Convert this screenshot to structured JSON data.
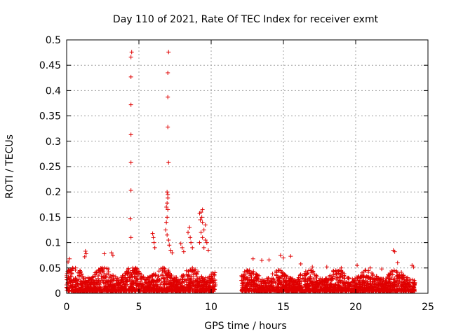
{
  "chart_data": {
    "type": "scatter",
    "title": "Day 110 of 2021, Rate Of TEC Index for receiver exmt",
    "xlabel": "GPS time / hours",
    "ylabel": "ROTI / TECUs",
    "xlim": [
      0,
      25
    ],
    "ylim": [
      0,
      0.5
    ],
    "x_ticks": [
      0,
      5,
      10,
      15,
      20,
      25
    ],
    "x_tick_labels": [
      "0",
      "5",
      "10",
      "15",
      "20",
      "25"
    ],
    "y_ticks": [
      0,
      0.05,
      0.1,
      0.15,
      0.2,
      0.25,
      0.3,
      0.35,
      0.4,
      0.45,
      0.5
    ],
    "y_tick_labels": [
      "0",
      "0.05",
      "0.1",
      "0.15",
      "0.2",
      "0.25",
      "0.3",
      "0.35",
      "0.4",
      "0.45",
      "0.5"
    ],
    "grid": true,
    "marker": "+",
    "series_color": "#e00000",
    "series": [
      {
        "name": "ROTI",
        "points": [
          [
            4.5,
            0.476
          ],
          [
            4.45,
            0.466
          ],
          [
            4.45,
            0.427
          ],
          [
            4.45,
            0.372
          ],
          [
            4.45,
            0.313
          ],
          [
            4.45,
            0.258
          ],
          [
            4.45,
            0.203
          ],
          [
            4.4,
            0.147
          ],
          [
            4.45,
            0.11
          ],
          [
            7.05,
            0.476
          ],
          [
            7.0,
            0.435
          ],
          [
            7.0,
            0.387
          ],
          [
            7.0,
            0.328
          ],
          [
            7.05,
            0.258
          ],
          [
            6.95,
            0.2
          ],
          [
            7.0,
            0.195
          ],
          [
            7.0,
            0.188
          ],
          [
            6.95,
            0.178
          ],
          [
            6.9,
            0.17
          ],
          [
            7.0,
            0.165
          ],
          [
            6.95,
            0.15
          ],
          [
            6.9,
            0.14
          ],
          [
            6.85,
            0.125
          ],
          [
            6.95,
            0.115
          ],
          [
            7.05,
            0.105
          ],
          [
            7.1,
            0.095
          ],
          [
            7.2,
            0.085
          ],
          [
            7.3,
            0.08
          ],
          [
            9.4,
            0.165
          ],
          [
            9.3,
            0.16
          ],
          [
            9.2,
            0.158
          ],
          [
            9.35,
            0.15
          ],
          [
            9.25,
            0.145
          ],
          [
            9.4,
            0.14
          ],
          [
            9.6,
            0.135
          ],
          [
            9.5,
            0.125
          ],
          [
            9.3,
            0.12
          ],
          [
            9.4,
            0.11
          ],
          [
            9.6,
            0.105
          ],
          [
            9.7,
            0.1
          ],
          [
            9.2,
            0.1
          ],
          [
            9.5,
            0.09
          ],
          [
            9.8,
            0.085
          ],
          [
            8.5,
            0.13
          ],
          [
            8.4,
            0.12
          ],
          [
            8.55,
            0.11
          ],
          [
            8.6,
            0.1
          ],
          [
            8.7,
            0.09
          ],
          [
            5.95,
            0.118
          ],
          [
            6.0,
            0.11
          ],
          [
            6.05,
            0.1
          ],
          [
            6.1,
            0.09
          ],
          [
            7.9,
            0.098
          ],
          [
            8.0,
            0.09
          ],
          [
            8.1,
            0.082
          ],
          [
            1.3,
            0.083
          ],
          [
            1.35,
            0.078
          ],
          [
            1.25,
            0.072
          ],
          [
            2.6,
            0.078
          ],
          [
            3.1,
            0.08
          ],
          [
            3.2,
            0.075
          ],
          [
            0.2,
            0.068
          ],
          [
            0.1,
            0.062
          ],
          [
            12.9,
            0.068
          ],
          [
            13.5,
            0.065
          ],
          [
            14.0,
            0.066
          ],
          [
            14.8,
            0.075
          ],
          [
            15.0,
            0.07
          ],
          [
            15.5,
            0.073
          ],
          [
            16.2,
            0.058
          ],
          [
            17.0,
            0.052
          ],
          [
            18.0,
            0.052
          ],
          [
            19.0,
            0.05
          ],
          [
            20.1,
            0.055
          ],
          [
            21.0,
            0.05
          ],
          [
            21.8,
            0.048
          ],
          [
            22.6,
            0.085
          ],
          [
            22.7,
            0.082
          ],
          [
            22.9,
            0.06
          ],
          [
            23.9,
            0.055
          ],
          [
            24.0,
            0.052
          ]
        ],
        "dense_bands": [
          {
            "x_start": 0.0,
            "x_end": 10.3,
            "y_min": 0.0,
            "y_max": 0.05
          },
          {
            "x_start": 12.1,
            "x_end": 24.1,
            "y_min": 0.0,
            "y_max": 0.045
          }
        ]
      }
    ]
  }
}
